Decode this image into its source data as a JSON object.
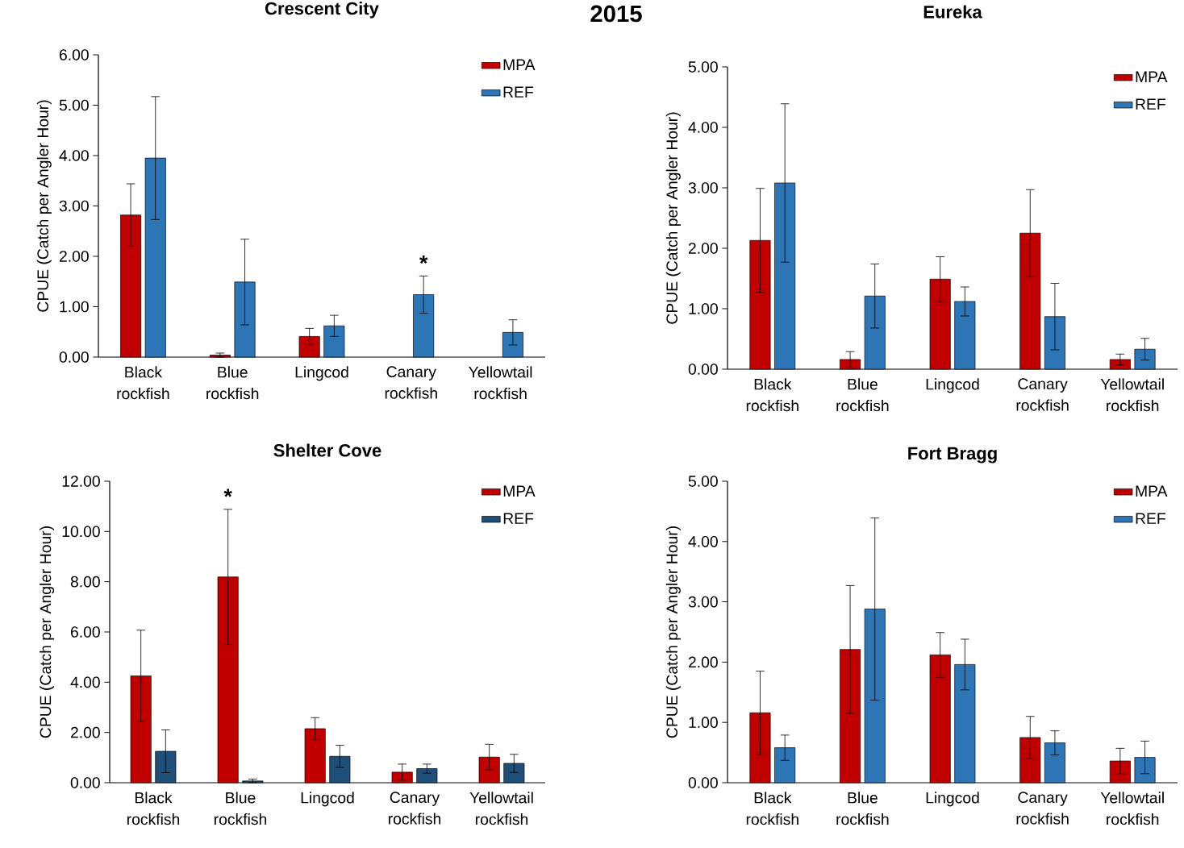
{
  "chart_data": [
    {
      "type": "other",
      "title": "2015"
    },
    {
      "type": "bar",
      "title": "Crescent City",
      "ylabel": "CPUE (Catch per Angler Hour)",
      "categories": [
        "Black rockfish",
        "Blue rockfish",
        "Lingcod",
        "Canary rockfish",
        "Yellowtail rockfish"
      ],
      "series": [
        {
          "name": "MPA",
          "color": "#c00000",
          "values": [
            2.82,
            0.04,
            0.41,
            null,
            null
          ],
          "errors": [
            0.62,
            0.04,
            0.16,
            null,
            null
          ]
        },
        {
          "name": "REF",
          "color": "#2e75b6",
          "values": [
            3.95,
            1.49,
            0.62,
            1.24,
            0.49
          ],
          "errors": [
            1.22,
            0.85,
            0.21,
            0.37,
            0.25
          ]
        }
      ],
      "ylim": [
        0,
        6
      ],
      "yticks": [
        {
          "value": 0,
          "label": "0.00"
        },
        {
          "value": 1,
          "label": "1.00"
        },
        {
          "value": 2,
          "label": "2.00"
        },
        {
          "value": 3,
          "label": "3.00"
        },
        {
          "value": 4,
          "label": "4.00"
        },
        {
          "value": 5,
          "label": "5.00"
        },
        {
          "value": 6,
          "label": "6.00"
        }
      ],
      "annotations": [
        {
          "text": "*",
          "x": "Canary rockfish",
          "y": 1.24
        }
      ],
      "legend": "top right"
    },
    {
      "type": "bar",
      "title": "Eureka",
      "ylabel": "CPUE (Catch per Angler Hour)",
      "categories": [
        "Black rockfish",
        "Blue rockfish",
        "Lingcod",
        "Canary rockfish",
        "Yellowtail rockfish"
      ],
      "series": [
        {
          "name": "MPA",
          "color": "#c00000",
          "values": [
            2.13,
            0.16,
            1.49,
            2.25,
            0.16
          ],
          "errors": [
            0.86,
            0.13,
            0.37,
            0.72,
            0.09
          ]
        },
        {
          "name": "REF",
          "color": "#2e75b6",
          "values": [
            3.08,
            1.21,
            1.12,
            0.87,
            0.33
          ],
          "errors": [
            1.31,
            0.53,
            0.24,
            0.55,
            0.18
          ]
        }
      ],
      "ylim": [
        0,
        5
      ],
      "yticks": [
        {
          "value": 0,
          "label": "0.00"
        },
        {
          "value": 1,
          "label": "1.00"
        },
        {
          "value": 2,
          "label": "2.00"
        },
        {
          "value": 3,
          "label": "3.00"
        },
        {
          "value": 4,
          "label": "4.00"
        },
        {
          "value": 5,
          "label": "5.00"
        }
      ],
      "legend": "top right"
    },
    {
      "type": "bar",
      "title": "Shelter Cove",
      "ylabel": "CPUE (Catch per Angler Hour)",
      "categories": [
        "Black rockfish",
        "Blue rockfish",
        "Lingcod",
        "Canary rockfish",
        "Yellowtail rockfish"
      ],
      "series": [
        {
          "name": "MPA",
          "color": "#c00000",
          "values": [
            4.25,
            8.19,
            2.15,
            0.42,
            1.02
          ],
          "errors": [
            1.82,
            2.69,
            0.44,
            0.32,
            0.51
          ]
        },
        {
          "name": "REF",
          "color": "#1f4e79",
          "values": [
            1.25,
            0.07,
            1.05,
            0.56,
            0.77
          ],
          "errors": [
            0.85,
            0.07,
            0.44,
            0.18,
            0.36
          ]
        }
      ],
      "ylim": [
        0,
        12
      ],
      "yticks": [
        {
          "value": 0,
          "label": "0.00"
        },
        {
          "value": 2,
          "label": "2.00"
        },
        {
          "value": 4,
          "label": "4.00"
        },
        {
          "value": 6,
          "label": "6.00"
        },
        {
          "value": 8,
          "label": "8.00"
        },
        {
          "value": 10,
          "label": "10.00"
        },
        {
          "value": 12,
          "label": "12.00"
        }
      ],
      "annotations": [
        "*"
      ],
      "legend": "top right"
    },
    {
      "type": "bar",
      "title": "Fort Bragg",
      "ylabel": "CPUE (Catch per Angler Hour)",
      "categories": [
        "Black rockfish",
        "Blue rockfish",
        "Lingcod",
        "Canary rockfish",
        "Yellowtail rockfish"
      ],
      "series": [
        {
          "name": "MPA",
          "color": "#c00000",
          "values": [
            1.16,
            2.21,
            2.12,
            0.75,
            0.36
          ],
          "errors": [
            0.69,
            1.06,
            0.37,
            0.35,
            0.21
          ]
        },
        {
          "name": "REF",
          "color": "#2e75b6",
          "values": [
            0.58,
            2.88,
            1.96,
            0.66,
            0.42
          ],
          "errors": [
            0.21,
            1.51,
            0.42,
            0.2,
            0.27
          ]
        }
      ],
      "ylim": [
        0,
        5
      ],
      "yticks": [
        {
          "value": 0,
          "label": "0.00"
        },
        {
          "value": 1,
          "label": "1.00"
        },
        {
          "value": 2,
          "label": "2.00"
        },
        {
          "value": 3,
          "label": "3.00"
        },
        {
          "value": 4,
          "label": "4.00"
        },
        {
          "value": 5,
          "label": "5.00"
        }
      ],
      "legend": "top right"
    }
  ]
}
